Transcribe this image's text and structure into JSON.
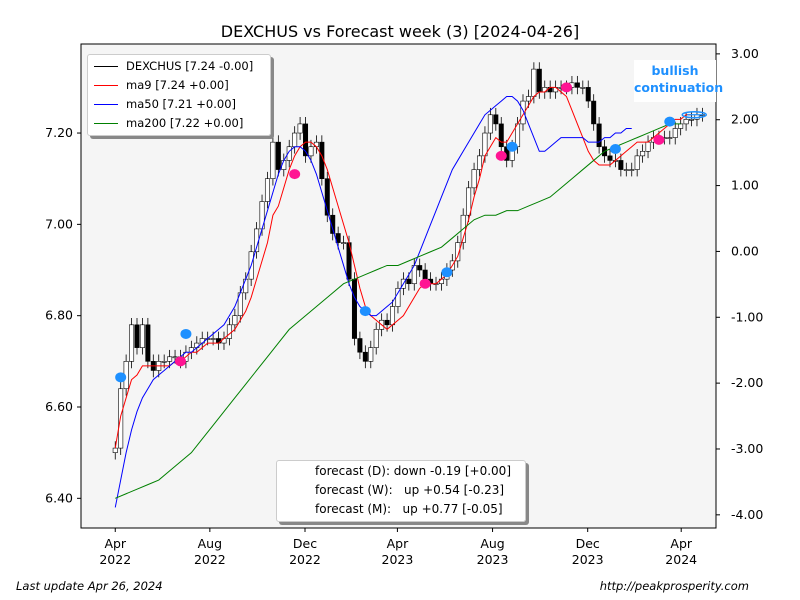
{
  "page": {
    "title": "DEXCHUS vs Forecast week (3)  [2024-04-26]",
    "last_update": "Last update Apr 26, 2024",
    "source_url": "http://peakprosperity.com"
  },
  "legend": {
    "items": [
      {
        "label": "DEXCHUS [7.24 -0.00]",
        "color": "#000000"
      },
      {
        "label": "ma9 [7.24 +0.00]",
        "color": "#ff0000"
      },
      {
        "label": "ma50 [7.21 +0.00]",
        "color": "#0000ff"
      },
      {
        "label": "ma200 [7.22 +0.00]",
        "color": "#008000"
      }
    ]
  },
  "forecast_box": {
    "lines": [
      "forecast (D): down -0.19 [+0.00]",
      "forecast (W):   up +0.54 [-0.23]",
      "forecast (M):   up +0.77 [-0.05]"
    ]
  },
  "signal": {
    "line1": "bullish",
    "line2": "continuation",
    "color": "#1e90ff"
  },
  "chart_data": {
    "type": "line",
    "title": "DEXCHUS vs Forecast week (3)  [2024-04-26]",
    "x_ticks": [
      {
        "t": 0,
        "l1": "Apr",
        "l2": "2022"
      },
      {
        "t": 17.4,
        "l1": "Aug",
        "l2": "2022"
      },
      {
        "t": 34.9,
        "l1": "Dec",
        "l2": "2022"
      },
      {
        "t": 51.9,
        "l1": "Apr",
        "l2": "2023"
      },
      {
        "t": 69.4,
        "l1": "Aug",
        "l2": "2023"
      },
      {
        "t": 86.9,
        "l1": "Dec",
        "l2": "2023"
      },
      {
        "t": 104.1,
        "l1": "Apr",
        "l2": "2024"
      }
    ],
    "x_range": [
      -6.3,
      110.5
    ],
    "y_left_range": [
      6.335,
      7.395
    ],
    "y_left_ticks": [
      6.4,
      6.6,
      6.8,
      7.0,
      7.2
    ],
    "y_right_range": [
      -4.2,
      3.15
    ],
    "y_right_ticks": [
      "-4.00",
      "-3.00",
      "-2.00",
      "-1.00",
      "0.00",
      "1.00",
      "2.00",
      "3.00"
    ],
    "grid": false,
    "legend_position": "top-left",
    "series": [
      {
        "name": "DEXCHUS",
        "color": "#000000",
        "render": "candles",
        "values": [
          6.51,
          6.64,
          6.7,
          6.78,
          6.73,
          6.78,
          6.7,
          6.68,
          6.7,
          6.7,
          6.71,
          6.71,
          6.7,
          6.72,
          6.73,
          6.74,
          6.75,
          6.75,
          6.75,
          6.74,
          6.75,
          6.78,
          6.8,
          6.85,
          6.88,
          6.94,
          6.99,
          7.05,
          7.1,
          7.18,
          7.12,
          7.14,
          7.17,
          7.2,
          7.22,
          7.15,
          7.17,
          7.18,
          7.1,
          7.02,
          6.98,
          6.96,
          6.96,
          6.88,
          6.75,
          6.72,
          6.7,
          6.73,
          6.77,
          6.79,
          6.78,
          6.82,
          6.86,
          6.88,
          6.87,
          6.91,
          6.9,
          6.88,
          6.87,
          6.87,
          6.88,
          6.9,
          6.92,
          6.96,
          7.02,
          7.08,
          7.12,
          7.15,
          7.2,
          7.24,
          7.22,
          7.17,
          7.14,
          7.17,
          7.22,
          7.27,
          7.28,
          7.34,
          7.29,
          7.3,
          7.29,
          7.3,
          7.3,
          7.3,
          7.31,
          7.3,
          7.3,
          7.27,
          7.22,
          7.17,
          7.15,
          7.14,
          7.14,
          7.12,
          7.12,
          7.12,
          7.15,
          7.16,
          7.18,
          7.19,
          7.19,
          7.19,
          7.19,
          7.21,
          7.22,
          7.23,
          7.23,
          7.24,
          7.24
        ]
      },
      {
        "name": "ma9",
        "color": "#ff0000",
        "values": [
          6.51,
          6.58,
          6.62,
          6.66,
          6.67,
          6.69,
          6.69,
          6.69,
          6.69,
          6.69,
          6.69,
          6.7,
          6.7,
          6.71,
          6.72,
          6.72,
          6.73,
          6.74,
          6.74,
          6.74,
          6.75,
          6.76,
          6.77,
          6.79,
          6.81,
          6.84,
          6.88,
          6.92,
          6.96,
          7.02,
          7.04,
          7.08,
          7.12,
          7.15,
          7.17,
          7.18,
          7.18,
          7.17,
          7.15,
          7.12,
          7.08,
          7.04,
          7.0,
          6.96,
          6.91,
          6.86,
          6.82,
          6.8,
          6.79,
          6.78,
          6.77,
          6.78,
          6.79,
          6.8,
          6.82,
          6.84,
          6.86,
          6.87,
          6.87,
          6.87,
          6.88,
          6.89,
          6.91,
          6.93,
          6.97,
          7.01,
          7.06,
          7.1,
          7.15,
          7.17,
          7.19,
          7.18,
          7.18,
          7.2,
          7.22,
          7.24,
          7.26,
          7.28,
          7.29,
          7.29,
          7.3,
          7.3,
          7.29,
          7.28,
          7.25,
          7.22,
          7.19,
          7.16,
          7.14,
          7.13,
          7.13,
          7.13,
          7.14,
          7.15,
          7.16,
          7.17,
          7.18,
          7.18,
          7.18,
          7.19,
          7.2,
          7.21,
          7.22,
          7.23,
          7.23,
          7.24,
          7.24
        ]
      },
      {
        "name": "ma50",
        "color": "#0000ff",
        "values": [
          6.38,
          6.44,
          6.5,
          6.55,
          6.59,
          6.62,
          6.64,
          6.66,
          6.67,
          6.68,
          6.69,
          6.7,
          6.71,
          6.72,
          6.72,
          6.73,
          6.74,
          6.75,
          6.76,
          6.77,
          6.78,
          6.8,
          6.82,
          6.85,
          6.88,
          6.91,
          6.95,
          6.99,
          7.03,
          7.07,
          7.11,
          7.14,
          7.16,
          7.17,
          7.17,
          7.16,
          7.14,
          7.11,
          7.07,
          7.03,
          6.99,
          6.95,
          6.91,
          6.87,
          6.84,
          6.82,
          6.81,
          6.8,
          6.8,
          6.81,
          6.82,
          6.83,
          6.85,
          6.87,
          6.89,
          6.91,
          6.94,
          6.97,
          7.0,
          7.03,
          7.06,
          7.09,
          7.12,
          7.14,
          7.16,
          7.18,
          7.2,
          7.22,
          7.24,
          7.25,
          7.26,
          7.27,
          7.28,
          7.28,
          7.27,
          7.25,
          7.22,
          7.19,
          7.16,
          7.16,
          7.17,
          7.18,
          7.19,
          7.19,
          7.19,
          7.19,
          7.19,
          7.18,
          7.18,
          7.18,
          7.19,
          7.19,
          7.2,
          7.2,
          7.21,
          7.21
        ]
      },
      {
        "name": "ma200",
        "color": "#008000",
        "values": [
          6.4,
          6.41,
          6.42,
          6.43,
          6.44,
          6.46,
          6.48,
          6.5,
          6.53,
          6.56,
          6.59,
          6.62,
          6.65,
          6.68,
          6.71,
          6.74,
          6.77,
          6.79,
          6.81,
          6.83,
          6.85,
          6.87,
          6.88,
          6.89,
          6.9,
          6.91,
          6.91,
          6.92,
          6.93,
          6.94,
          6.95,
          6.97,
          6.99,
          7.01,
          7.02,
          7.02,
          7.03,
          7.03,
          7.04,
          7.05,
          7.06,
          7.08,
          7.1,
          7.12,
          7.14,
          7.16,
          7.17,
          7.18,
          7.19,
          7.2,
          7.21,
          7.22,
          7.22
        ]
      }
    ],
    "markers": [
      {
        "t": 1,
        "v": 6.665,
        "color": "#1e90ff"
      },
      {
        "t": 12,
        "v": 6.7,
        "color": "#ff1493"
      },
      {
        "t": 13,
        "v": 6.76,
        "color": "#1e90ff"
      },
      {
        "t": 33,
        "v": 7.11,
        "color": "#ff1493"
      },
      {
        "t": 46,
        "v": 6.81,
        "color": "#1e90ff"
      },
      {
        "t": 57,
        "v": 6.87,
        "color": "#ff1493"
      },
      {
        "t": 61,
        "v": 6.895,
        "color": "#1e90ff"
      },
      {
        "t": 71,
        "v": 7.15,
        "color": "#ff1493"
      },
      {
        "t": 73,
        "v": 7.17,
        "color": "#1e90ff"
      },
      {
        "t": 83,
        "v": 7.3,
        "color": "#ff1493"
      },
      {
        "t": 92,
        "v": 7.165,
        "color": "#1e90ff"
      },
      {
        "t": 100,
        "v": 7.185,
        "color": "#ff1493"
      },
      {
        "t": 102,
        "v": 7.225,
        "color": "#1e90ff"
      }
    ],
    "forecast_marker": {
      "t": 106.5,
      "v": 7.24,
      "color": "#1e90ff"
    }
  }
}
